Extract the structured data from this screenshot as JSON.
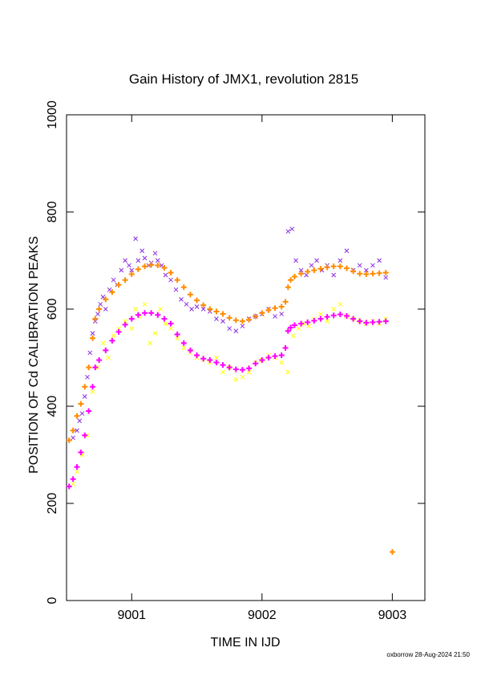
{
  "chart_data": {
    "type": "scatter",
    "title": "Gain History of JMX1, revolution 2815",
    "xlabel": "TIME IN IJD",
    "ylabel": "POSITION OF Cd CALIBRATION PEAKS",
    "xlim": [
      9000.5,
      9003.25
    ],
    "ylim": [
      0,
      1000
    ],
    "x_ticks": [
      9001,
      9002,
      9003
    ],
    "x_tick_labels": [
      "9001",
      "9002",
      "9003"
    ],
    "y_ticks": [
      0,
      200,
      400,
      600,
      800,
      1000
    ],
    "y_tick_labels": [
      "0",
      "200",
      "400",
      "600",
      "800",
      "1000"
    ],
    "grid": false,
    "legend": "none",
    "footer": "oxborrow 28-Aug-2024 21:50",
    "series": [
      {
        "marker": "x",
        "color": "#8a2be2",
        "values_x": [
          9000.55,
          9000.58,
          9000.6,
          9000.62,
          9000.64,
          9000.66,
          9000.68,
          9000.7,
          9000.72,
          9000.74,
          9000.76,
          9000.78,
          9000.8,
          9000.83,
          9000.86,
          9000.89,
          9000.92,
          9000.95,
          9000.98,
          9001.0,
          9001.03,
          9001.05,
          9001.08,
          9001.1,
          9001.13,
          9001.15,
          9001.18,
          9001.2,
          9001.23,
          9001.26,
          9001.3,
          9001.34,
          9001.38,
          9001.42,
          9001.46,
          9001.5,
          9001.55,
          9001.6,
          9001.65,
          9001.7,
          9001.75,
          9001.8,
          9001.85,
          9001.9,
          9001.95,
          9002.0,
          9002.05,
          9002.1,
          9002.15,
          9002.2,
          9002.23,
          9002.26,
          9002.3,
          9002.34,
          9002.38,
          9002.42,
          9002.46,
          9002.5,
          9002.55,
          9002.6,
          9002.65,
          9002.7,
          9002.75,
          9002.8,
          9002.85,
          9002.9,
          9002.95
        ],
        "values_y": [
          335,
          350,
          370,
          385,
          420,
          460,
          510,
          550,
          575,
          590,
          610,
          625,
          600,
          640,
          660,
          650,
          680,
          700,
          690,
          680,
          745,
          700,
          720,
          705,
          690,
          695,
          715,
          700,
          690,
          670,
          660,
          640,
          620,
          610,
          600,
          605,
          600,
          595,
          580,
          575,
          560,
          555,
          565,
          580,
          585,
          590,
          600,
          585,
          590,
          760,
          765,
          700,
          680,
          670,
          690,
          700,
          680,
          690,
          670,
          700,
          720,
          680,
          690,
          680,
          690,
          700,
          665
        ]
      },
      {
        "marker": "x",
        "color": "#ffff00",
        "values_x": [
          9000.55,
          9000.58,
          9000.62,
          9000.66,
          9000.7,
          9000.74,
          9000.78,
          9000.82,
          9000.86,
          9000.9,
          9000.95,
          9001.0,
          9001.03,
          9001.06,
          9001.1,
          9001.14,
          9001.18,
          9001.22,
          9001.26,
          9001.3,
          9001.35,
          9001.4,
          9001.45,
          9001.5,
          9001.55,
          9001.6,
          9001.65,
          9001.7,
          9001.75,
          9001.8,
          9001.85,
          9001.9,
          9001.95,
          9002.0,
          9002.05,
          9002.1,
          9002.15,
          9002.2,
          9002.24,
          9002.28,
          9002.32,
          9002.36,
          9002.4,
          9002.45,
          9002.5,
          9002.55,
          9002.6,
          9002.65,
          9002.7,
          9002.75,
          9002.8,
          9002.85,
          9002.9,
          9002.95
        ],
        "values_y": [
          240,
          265,
          300,
          340,
          430,
          480,
          530,
          500,
          545,
          560,
          575,
          560,
          600,
          585,
          610,
          530,
          550,
          600,
          570,
          560,
          540,
          520,
          510,
          500,
          495,
          490,
          500,
          470,
          480,
          455,
          460,
          470,
          490,
          495,
          505,
          500,
          490,
          470,
          545,
          560,
          570,
          565,
          580,
          590,
          575,
          600,
          610,
          585,
          580,
          575,
          570,
          575,
          570,
          580
        ]
      },
      {
        "marker": "+",
        "color": "#ff8c00",
        "values_x": [
          9000.52,
          9000.55,
          9000.58,
          9000.61,
          9000.64,
          9000.67,
          9000.7,
          9000.72,
          9000.75,
          9000.8,
          9000.85,
          9000.9,
          9000.95,
          9001.0,
          9001.05,
          9001.1,
          9001.15,
          9001.2,
          9001.25,
          9001.3,
          9001.35,
          9001.4,
          9001.45,
          9001.5,
          9001.55,
          9001.6,
          9001.65,
          9001.7,
          9001.75,
          9001.8,
          9001.85,
          9001.9,
          9001.95,
          9002.0,
          9002.05,
          9002.1,
          9002.15,
          9002.18,
          9002.2,
          9002.22,
          9002.25,
          9002.3,
          9002.35,
          9002.4,
          9002.45,
          9002.5,
          9002.55,
          9002.6,
          9002.65,
          9002.7,
          9002.75,
          9002.8,
          9002.85,
          9002.9,
          9002.95,
          9003.0
        ],
        "values_y": [
          330,
          350,
          380,
          405,
          440,
          480,
          540,
          580,
          600,
          620,
          635,
          650,
          660,
          672,
          682,
          688,
          691,
          690,
          685,
          675,
          660,
          645,
          630,
          618,
          608,
          600,
          595,
          590,
          582,
          577,
          575,
          578,
          585,
          592,
          598,
          602,
          605,
          615,
          645,
          660,
          667,
          673,
          677,
          680,
          683,
          686,
          688,
          688,
          684,
          678,
          673,
          672,
          673,
          674,
          675,
          100
        ]
      },
      {
        "marker": "+",
        "color": "#ff00ff",
        "values_x": [
          9000.52,
          9000.55,
          9000.58,
          9000.61,
          9000.64,
          9000.67,
          9000.7,
          9000.72,
          9000.75,
          9000.8,
          9000.85,
          9000.9,
          9000.95,
          9001.0,
          9001.05,
          9001.1,
          9001.15,
          9001.2,
          9001.25,
          9001.3,
          9001.35,
          9001.4,
          9001.45,
          9001.5,
          9001.55,
          9001.6,
          9001.65,
          9001.7,
          9001.75,
          9001.8,
          9001.85,
          9001.9,
          9001.95,
          9002.0,
          9002.05,
          9002.1,
          9002.15,
          9002.18,
          9002.2,
          9002.22,
          9002.25,
          9002.3,
          9002.35,
          9002.4,
          9002.45,
          9002.5,
          9002.55,
          9002.6,
          9002.65,
          9002.7,
          9002.75,
          9002.8,
          9002.85,
          9002.9,
          9002.95
        ],
        "values_y": [
          235,
          250,
          275,
          305,
          340,
          390,
          440,
          480,
          495,
          515,
          535,
          553,
          568,
          580,
          588,
          592,
          592,
          588,
          580,
          570,
          548,
          530,
          515,
          505,
          498,
          495,
          490,
          485,
          480,
          476,
          475,
          478,
          488,
          495,
          500,
          503,
          505,
          520,
          555,
          562,
          567,
          570,
          573,
          576,
          580,
          584,
          587,
          589,
          586,
          580,
          575,
          572,
          573,
          574,
          575
        ]
      }
    ]
  }
}
